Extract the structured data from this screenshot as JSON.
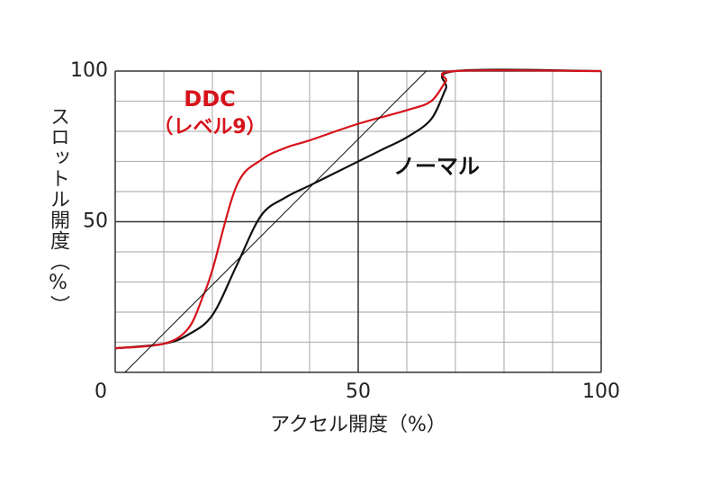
{
  "chart_data": {
    "type": "line",
    "x_label": "アクセル開度（%）",
    "y_label": "スロットル開度（%）",
    "xlim": [
      0,
      100
    ],
    "ylim": [
      0,
      100
    ],
    "xticks": [
      0,
      50,
      100
    ],
    "yticks": [
      50,
      100
    ],
    "x_minor_ticks": [
      10,
      20,
      30,
      40,
      60,
      70,
      80,
      90
    ],
    "y_minor_ticks": [
      10,
      20,
      30,
      40,
      60,
      70,
      80,
      90
    ],
    "grid": true,
    "series": [
      {
        "name": "ノーマル",
        "color": "#111111",
        "x": [
          0,
          10,
          15,
          20,
          25,
          30,
          35,
          40,
          45,
          50,
          55,
          60,
          65,
          68,
          70,
          100
        ],
        "values": [
          8,
          9.5,
          12.5,
          19,
          35.5,
          52,
          58,
          62,
          66,
          70,
          74,
          78,
          84,
          94,
          100,
          100
        ]
      },
      {
        "name": "DDC",
        "name_sub": "（レベル9）",
        "color": "#d7121b",
        "x": [
          0,
          10,
          15,
          18,
          20,
          25,
          30,
          35,
          40,
          50,
          60,
          65,
          68,
          70,
          100
        ],
        "values": [
          8,
          9.5,
          14.5,
          25,
          34,
          62,
          70.5,
          74.5,
          77,
          82.5,
          87,
          90,
          96.5,
          100,
          100
        ]
      },
      {
        "color": "#111111",
        "x": [
          2,
          64
        ],
        "values": [
          0,
          100
        ]
      }
    ]
  }
}
